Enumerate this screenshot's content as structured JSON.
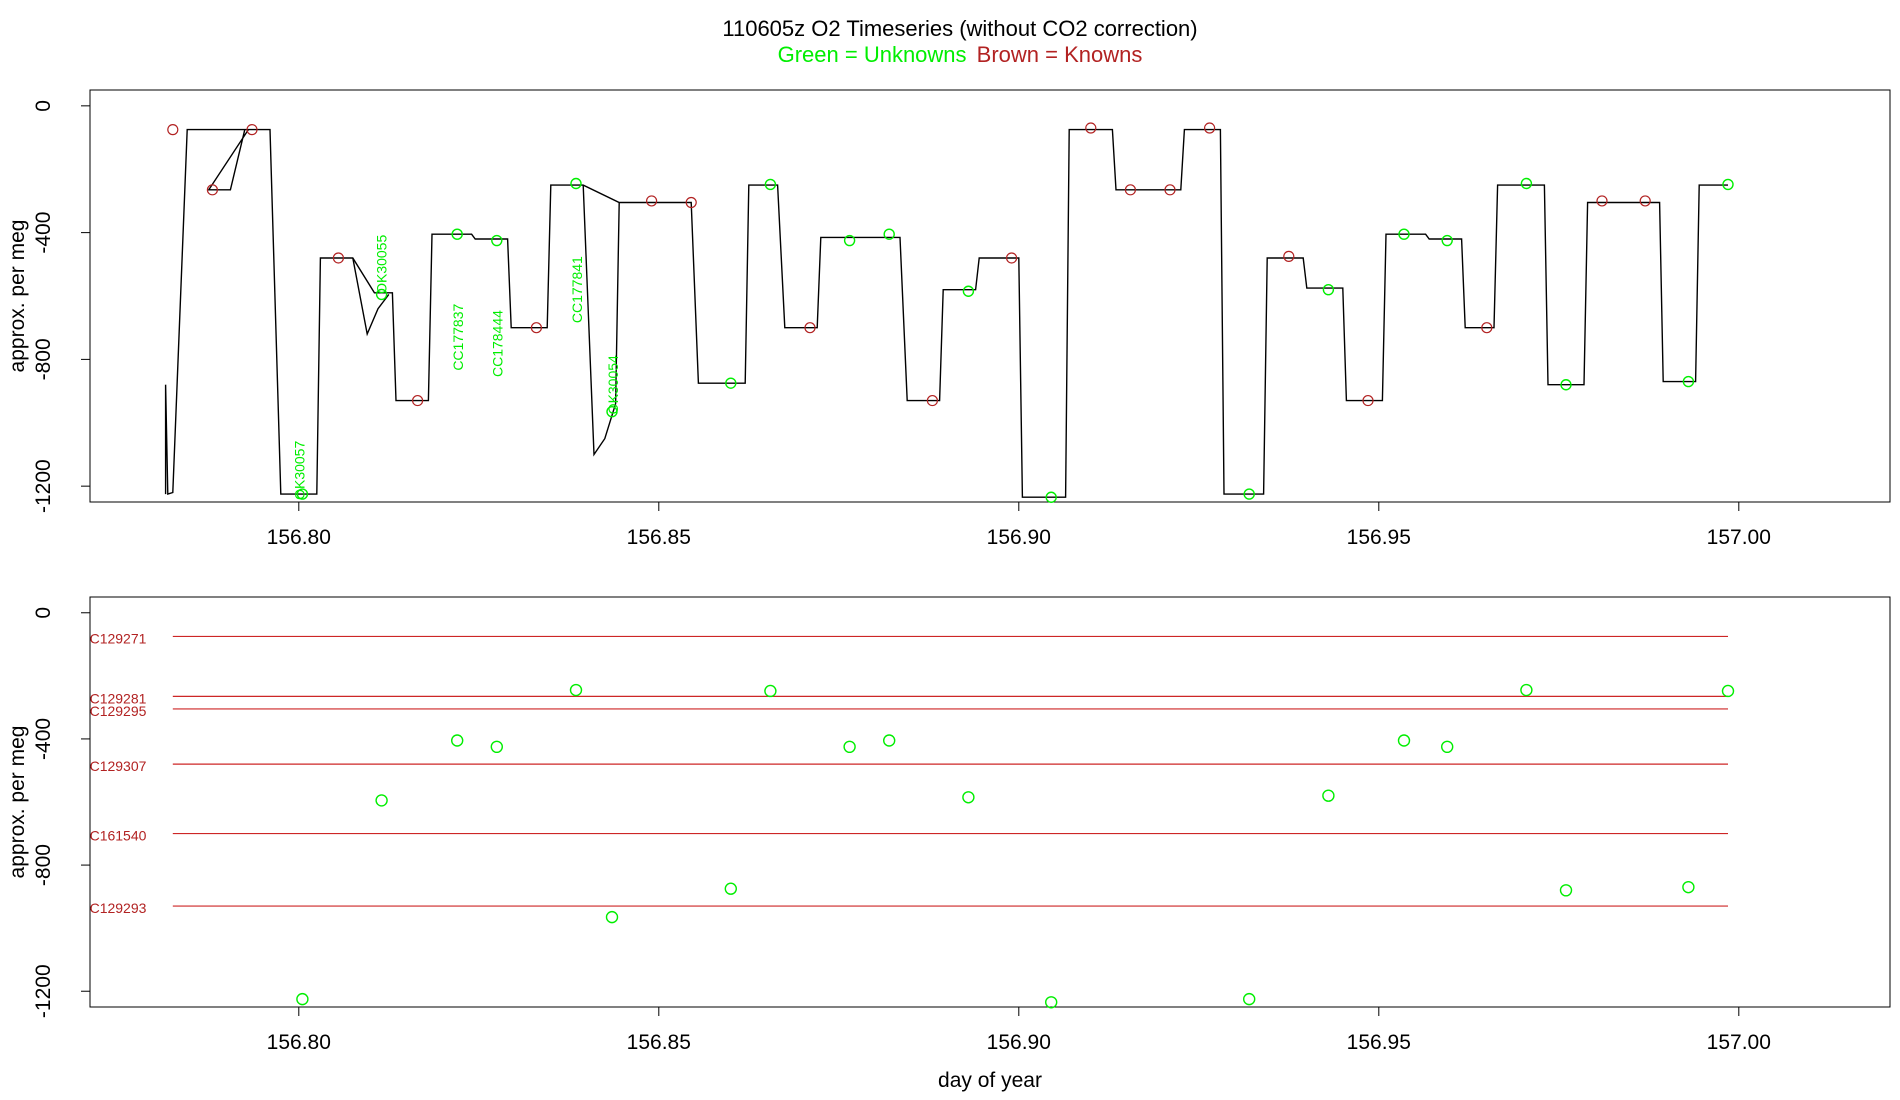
{
  "header": {
    "title": "110605z   O2 Timeseries (without CO2 correction)",
    "legend_green": "Green = Unknowns",
    "legend_brown": "Brown = Knowns"
  },
  "colors": {
    "unknown": "#00ee00",
    "known": "#b22222",
    "trace": "#000000",
    "ref_line": "#cd2626"
  },
  "chart_data": [
    {
      "type": "line",
      "name": "O2 timeseries",
      "xlabel": "",
      "ylabel": "approx. per meg",
      "xlim": [
        156.771,
        157.021
      ],
      "ylim": [
        -1250,
        50
      ],
      "xticks": [
        "156.80",
        "156.85",
        "156.90",
        "156.95",
        "157.00"
      ],
      "yticks": [
        "0",
        "-400",
        "-800",
        "-1200"
      ],
      "grid": false,
      "trace_levels": [
        {
          "x": [
            156.7845,
            156.793
          ],
          "y": -75
        },
        {
          "x": [
            156.7875,
            156.7905
          ],
          "y": -265
        },
        {
          "x": [
            156.7925,
            156.796
          ],
          "y": -75
        },
        {
          "x": [
            156.7975,
            156.8025
          ],
          "y": -1225
        },
        {
          "x": [
            156.803,
            156.8075
          ],
          "y": -480
        },
        {
          "x": [
            156.8105,
            156.813
          ],
          "y": -590
        },
        {
          "x": [
            156.8135,
            156.818
          ],
          "y": -930
        },
        {
          "x": [
            156.8185,
            156.824
          ],
          "y": -405
        },
        {
          "x": [
            156.8245,
            156.829
          ],
          "y": -420
        },
        {
          "x": [
            156.8295,
            156.8345
          ],
          "y": -700
        },
        {
          "x": [
            156.835,
            156.8395
          ],
          "y": -250
        },
        {
          "x": [
            156.8445,
            156.8545
          ],
          "y": -305
        },
        {
          "x": [
            156.8555,
            156.862
          ],
          "y": -875
        },
        {
          "x": [
            156.8625,
            156.8665
          ],
          "y": -250
        },
        {
          "x": [
            156.8675,
            156.872
          ],
          "y": -700
        },
        {
          "x": [
            156.8725,
            156.8835
          ],
          "y": -415
        },
        {
          "x": [
            156.8845,
            156.889
          ],
          "y": -930
        },
        {
          "x": [
            156.8895,
            156.894
          ],
          "y": -580
        },
        {
          "x": [
            156.8945,
            156.9
          ],
          "y": -480
        },
        {
          "x": [
            156.9005,
            156.9065
          ],
          "y": -1235
        },
        {
          "x": [
            156.907,
            156.913
          ],
          "y": -75
        },
        {
          "x": [
            156.9135,
            156.9225
          ],
          "y": -265
        },
        {
          "x": [
            156.923,
            156.928
          ],
          "y": -75
        },
        {
          "x": [
            156.9285,
            156.934
          ],
          "y": -1225
        },
        {
          "x": [
            156.9345,
            156.9395
          ],
          "y": -480
        },
        {
          "x": [
            156.94,
            156.945
          ],
          "y": -575
        },
        {
          "x": [
            156.9455,
            156.9505
          ],
          "y": -930
        },
        {
          "x": [
            156.951,
            156.9565
          ],
          "y": -405
        },
        {
          "x": [
            156.957,
            156.9615
          ],
          "y": -420
        },
        {
          "x": [
            156.962,
            156.966
          ],
          "y": -700
        },
        {
          "x": [
            156.9665,
            156.973
          ],
          "y": -250
        },
        {
          "x": [
            156.9735,
            156.9785
          ],
          "y": -880
        },
        {
          "x": [
            156.979,
            156.989
          ],
          "y": -305
        },
        {
          "x": [
            156.9895,
            156.994
          ],
          "y": -870
        },
        {
          "x": [
            156.9945,
            156.9985
          ],
          "y": -250
        }
      ],
      "knowns": [
        [
          156.7825,
          -75
        ],
        [
          156.788,
          -265
        ],
        [
          156.7935,
          -75
        ],
        [
          156.8055,
          -480
        ],
        [
          156.8165,
          -930
        ],
        [
          156.833,
          -700
        ],
        [
          156.849,
          -300
        ],
        [
          156.8545,
          -305
        ],
        [
          156.871,
          -700
        ],
        [
          156.888,
          -930
        ],
        [
          156.899,
          -480
        ],
        [
          156.91,
          -70
        ],
        [
          156.9155,
          -265
        ],
        [
          156.921,
          -265
        ],
        [
          156.9265,
          -70
        ],
        [
          156.9375,
          -475
        ],
        [
          156.9485,
          -930
        ],
        [
          156.965,
          -700
        ],
        [
          156.981,
          -300
        ],
        [
          156.987,
          -300
        ]
      ],
      "unknowns": [
        [
          156.8005,
          -1225
        ],
        [
          156.8115,
          -595
        ],
        [
          156.822,
          -405
        ],
        [
          156.8275,
          -425
        ],
        [
          156.8385,
          -245
        ],
        [
          156.8435,
          -965
        ],
        [
          156.86,
          -875
        ],
        [
          156.8655,
          -248
        ],
        [
          156.8765,
          -425
        ],
        [
          156.882,
          -405
        ],
        [
          156.893,
          -585
        ],
        [
          156.9045,
          -1235
        ],
        [
          156.932,
          -1225
        ],
        [
          156.943,
          -580
        ],
        [
          156.9535,
          -405
        ],
        [
          156.9595,
          -425
        ],
        [
          156.9705,
          -245
        ],
        [
          156.976,
          -880
        ],
        [
          156.993,
          -870
        ],
        [
          156.9985,
          -248
        ]
      ],
      "sample_labels": [
        {
          "text": "OK30057",
          "x": 156.8008,
          "y": -1150
        },
        {
          "text": "OK30055",
          "x": 156.8122,
          "y": -500
        },
        {
          "text": "CC177837",
          "x": 156.8228,
          "y": -730
        },
        {
          "text": "CC178444",
          "x": 156.8283,
          "y": -750
        },
        {
          "text": "CC177841",
          "x": 156.8393,
          "y": -580
        },
        {
          "text": "OK30054",
          "x": 156.8443,
          "y": -880
        }
      ]
    },
    {
      "type": "scatter",
      "name": "Unknowns vs reference tanks",
      "xlabel": "day of year",
      "ylabel": "approx. per meg",
      "xlim": [
        156.771,
        157.021
      ],
      "ylim": [
        -1250,
        50
      ],
      "xticks": [
        "156.80",
        "156.85",
        "156.90",
        "156.95",
        "157.00"
      ],
      "yticks": [
        "0",
        "-400",
        "-800",
        "-1200"
      ],
      "grid": false,
      "reference_lines": [
        {
          "label": "C129271",
          "y": -75,
          "x": [
            156.7825,
            156.9985
          ]
        },
        {
          "label": "C129281",
          "y": -265,
          "x": [
            156.7825,
            156.9985
          ]
        },
        {
          "label": "C129295",
          "y": -305,
          "x": [
            156.7825,
            156.9985
          ]
        },
        {
          "label": "C129307",
          "y": -480,
          "x": [
            156.7825,
            156.9985
          ]
        },
        {
          "label": "C161540",
          "y": -700,
          "x": [
            156.7825,
            156.9985
          ]
        },
        {
          "label": "C129293",
          "y": -930,
          "x": [
            156.7825,
            156.9985
          ]
        }
      ],
      "unknowns": [
        [
          156.8005,
          -1225
        ],
        [
          156.8115,
          -595
        ],
        [
          156.822,
          -405
        ],
        [
          156.8275,
          -425
        ],
        [
          156.8385,
          -245
        ],
        [
          156.8435,
          -965
        ],
        [
          156.86,
          -875
        ],
        [
          156.8655,
          -248
        ],
        [
          156.8765,
          -425
        ],
        [
          156.882,
          -405
        ],
        [
          156.893,
          -585
        ],
        [
          156.9045,
          -1235
        ],
        [
          156.932,
          -1225
        ],
        [
          156.943,
          -580
        ],
        [
          156.9535,
          -405
        ],
        [
          156.9595,
          -425
        ],
        [
          156.9705,
          -245
        ],
        [
          156.976,
          -880
        ],
        [
          156.993,
          -870
        ],
        [
          156.9985,
          -248
        ]
      ]
    }
  ]
}
